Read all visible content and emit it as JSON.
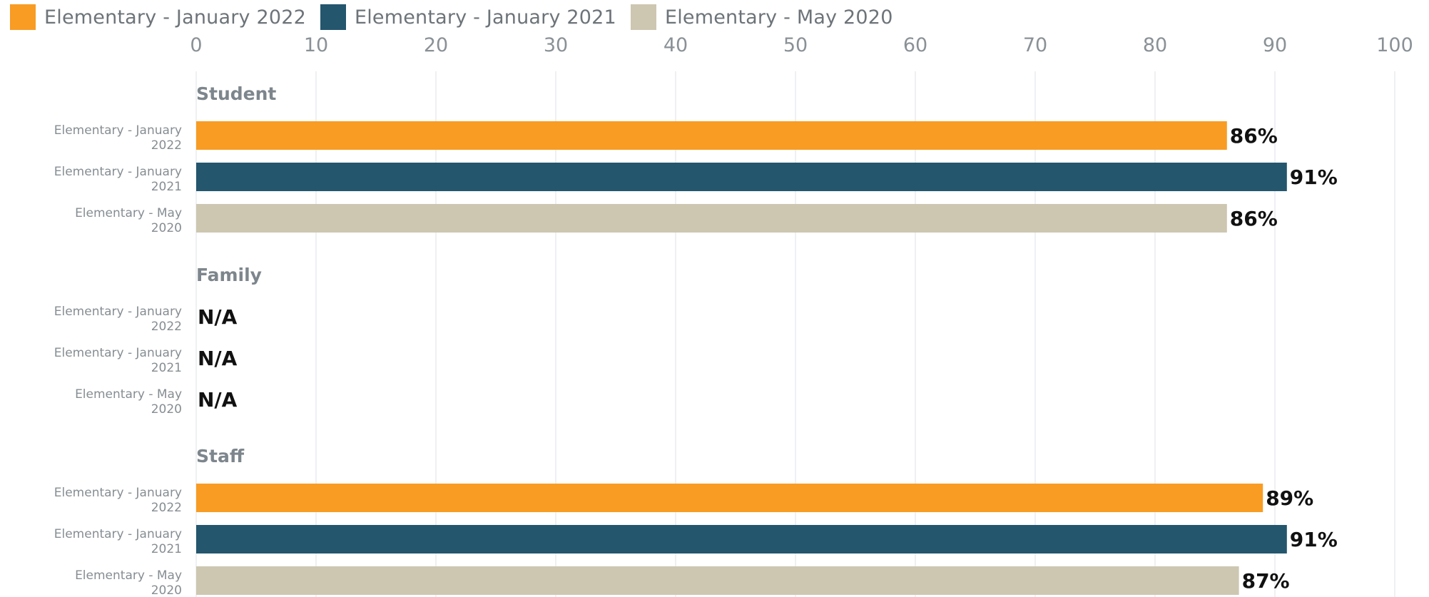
{
  "chart_data": {
    "type": "bar",
    "orientation": "horizontal",
    "xlim": [
      0,
      100
    ],
    "x_ticks": [
      0,
      10,
      20,
      30,
      40,
      50,
      60,
      70,
      80,
      90,
      100
    ],
    "grid": true,
    "legend_position": "top-left",
    "series": [
      {
        "name": "Elementary - January 2022",
        "label_lines": [
          "Elementary - January",
          "2022"
        ],
        "color": "#f89c24"
      },
      {
        "name": "Elementary - January 2021",
        "label_lines": [
          "Elementary - January",
          "2021"
        ],
        "color": "#24566e"
      },
      {
        "name": "Elementary - May 2020",
        "label_lines": [
          "Elementary - May",
          "2020"
        ],
        "color": "#cdc6b1"
      }
    ],
    "groups": [
      {
        "name": "Student",
        "values": [
          86,
          91,
          86
        ],
        "labels": [
          "86%",
          "91%",
          "86%"
        ]
      },
      {
        "name": "Family",
        "values": [
          null,
          null,
          null
        ],
        "labels": [
          "N/A",
          "N/A",
          "N/A"
        ]
      },
      {
        "name": "Staff",
        "values": [
          89,
          91,
          87
        ],
        "labels": [
          "89%",
          "91%",
          "87%"
        ]
      }
    ]
  }
}
